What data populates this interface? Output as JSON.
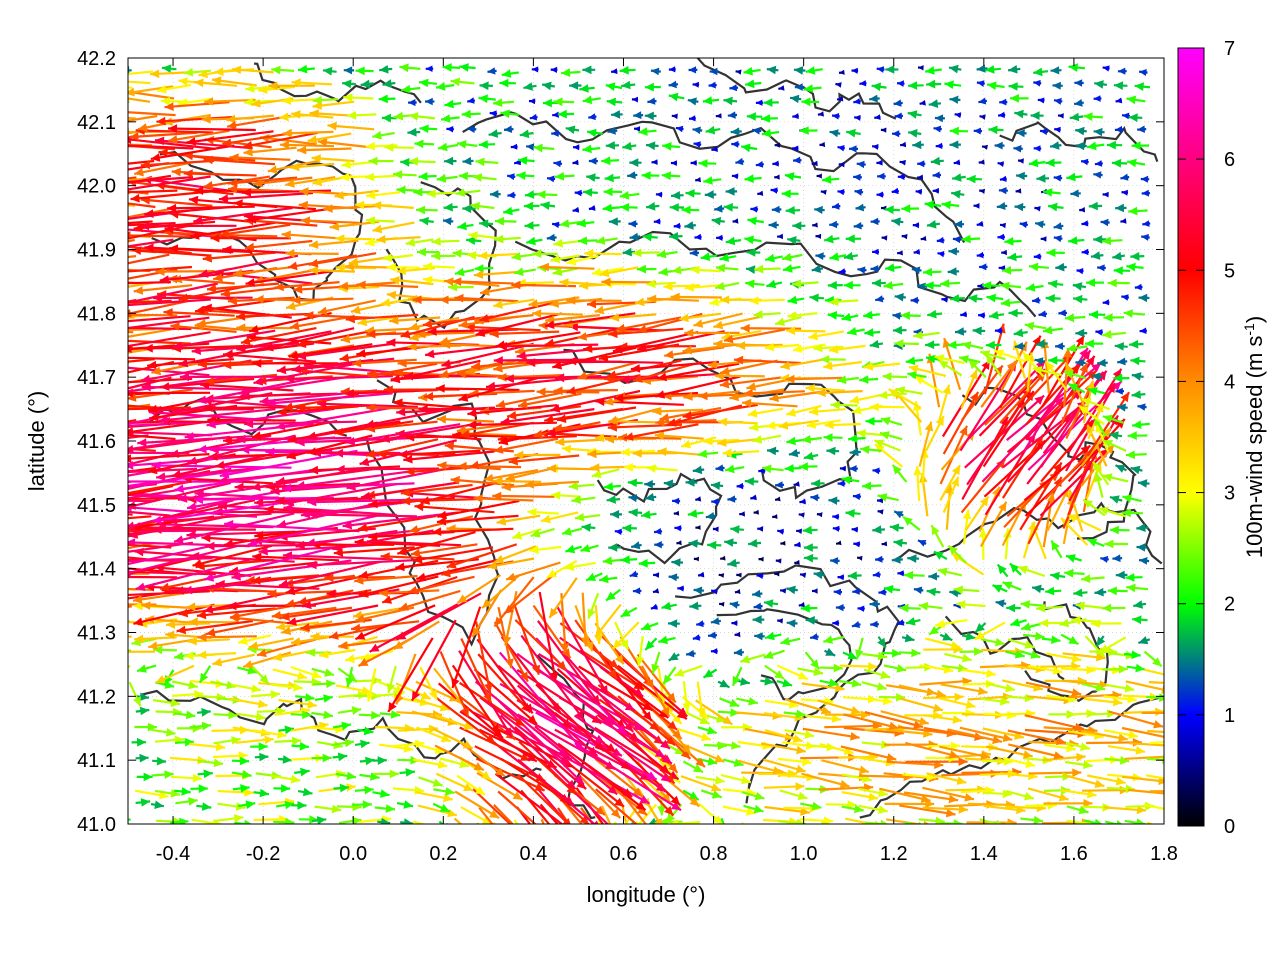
{
  "chart_data": {
    "type": "vector-field",
    "xlabel": "longitude (°)",
    "ylabel": "latitude (°)",
    "xlim": [
      -0.5,
      1.8
    ],
    "ylim": [
      41.0,
      42.2
    ],
    "x_ticks": [
      "-0.4",
      "-0.2",
      "0.0",
      "0.2",
      "0.4",
      "0.6",
      "0.8",
      "1.0",
      "1.2",
      "1.4",
      "1.6",
      "1.8"
    ],
    "y_ticks": [
      "41.0",
      "41.1",
      "41.2",
      "41.3",
      "41.4",
      "41.5",
      "41.6",
      "41.7",
      "41.8",
      "41.9",
      "42.0",
      "42.1",
      "42.2"
    ],
    "grid": true,
    "colorbar": {
      "label_main": "100m-wind speed (m s",
      "label_sup": "-1",
      "label_end": ")",
      "min": 0,
      "max": 7,
      "ticks": [
        "0",
        "1",
        "2",
        "3",
        "4",
        "5",
        "6",
        "7"
      ],
      "palette": [
        "#000000",
        "#0000ff",
        "#00ff00",
        "#ffff00",
        "#ff8c00",
        "#ff0000",
        "#ff00ff"
      ]
    },
    "wind_regions": [
      {
        "lon": [
          -0.5,
          0.3
        ],
        "lat": [
          41.35,
          41.75
        ],
        "u": -5.8,
        "v": -0.5,
        "speed": 6.5
      },
      {
        "lon": [
          -0.5,
          0.0
        ],
        "lat": [
          41.8,
          42.1
        ],
        "u": -5.0,
        "v": -0.2,
        "speed": 5.5
      },
      {
        "lon": [
          0.3,
          1.0
        ],
        "lat": [
          41.6,
          41.85
        ],
        "u": -5.0,
        "v": -0.6,
        "speed": 5.3
      },
      {
        "lon": [
          0.6,
          1.6
        ],
        "lat": [
          41.85,
          42.2
        ],
        "u": -1.0,
        "v": 0.0,
        "speed": 1.2
      },
      {
        "lon": [
          0.6,
          1.2
        ],
        "lat": [
          41.3,
          41.55
        ],
        "u": -0.8,
        "v": 0.0,
        "speed": 0.9
      },
      {
        "lon": [
          1.3,
          1.6
        ],
        "lat": [
          41.45,
          41.65
        ],
        "u": 2.5,
        "v": 2.5,
        "speed": 6.2
      },
      {
        "lon": [
          0.9,
          1.8
        ],
        "lat": [
          41.0,
          41.25
        ],
        "u": 3.5,
        "v": -0.3,
        "speed": 3.8
      },
      {
        "lon": [
          -0.5,
          0.2
        ],
        "lat": [
          41.0,
          41.25
        ],
        "u": 2.0,
        "v": 0.0,
        "speed": 2.6
      },
      {
        "lon": [
          0.2,
          0.6
        ],
        "lat": [
          41.05,
          41.35
        ],
        "u": 2.5,
        "v": -1.8,
        "speed": 6.5
      }
    ]
  }
}
